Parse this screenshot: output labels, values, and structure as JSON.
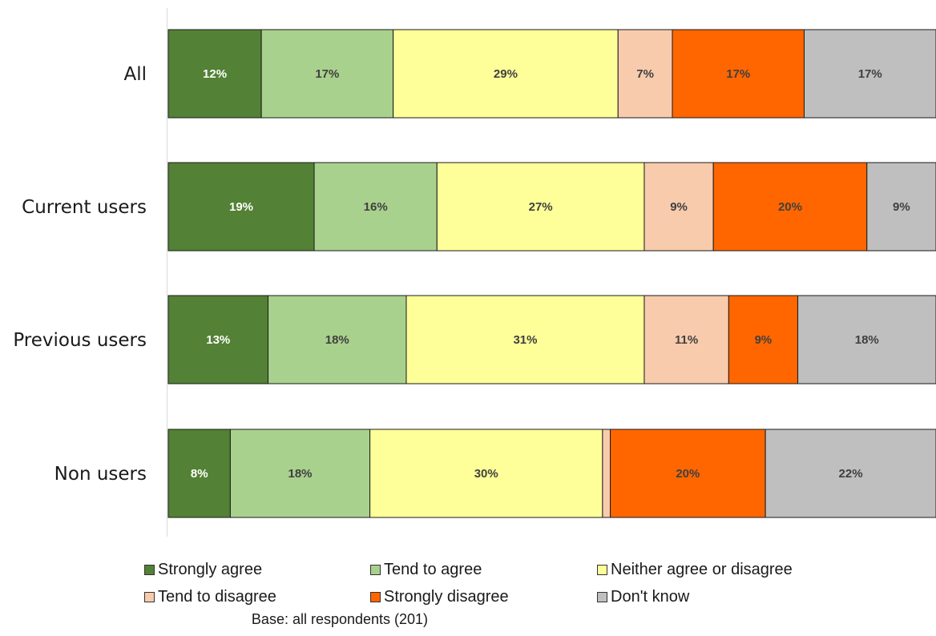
{
  "chart_data": {
    "type": "bar",
    "orientation": "horizontal",
    "stacked": true,
    "categories": [
      "All",
      "Current users",
      "Previous users",
      "Non users"
    ],
    "series": [
      {
        "name": "Strongly agree",
        "color": "#538135",
        "label_color": "#ffffff",
        "values": [
          12,
          19,
          13,
          8
        ],
        "labels": [
          "12%",
          "19%",
          "13%",
          "8%"
        ]
      },
      {
        "name": "Tend to agree",
        "color": "#a9d18e",
        "label_color": "#404040",
        "values": [
          17,
          16,
          18,
          18
        ],
        "labels": [
          "17%",
          "16%",
          "18%",
          "18%"
        ]
      },
      {
        "name": "Neither agree or disagree",
        "color": "#ffff99",
        "label_color": "#404040",
        "values": [
          29,
          27,
          31,
          30
        ],
        "labels": [
          "29%",
          "27%",
          "31%",
          "30%"
        ]
      },
      {
        "name": "Tend to disagree",
        "color": "#f8cbad",
        "label_color": "#404040",
        "values": [
          7,
          9,
          11,
          1
        ],
        "labels": [
          "7%",
          "9%",
          "11%",
          ""
        ]
      },
      {
        "name": "Strongly disagree",
        "color": "#ff6600",
        "label_color": "#404040",
        "values": [
          17,
          20,
          9,
          20
        ],
        "labels": [
          "17%",
          "20%",
          "9%",
          "20%"
        ]
      },
      {
        "name": "Don't know",
        "color": "#bfbfbf",
        "label_color": "#404040",
        "values": [
          17,
          9,
          18,
          22
        ],
        "labels": [
          "17%",
          "9%",
          "18%",
          "22%"
        ]
      }
    ],
    "xlim": [
      0,
      100
    ],
    "grid": false,
    "legend_position": "bottom",
    "note": "Base: all respondents (201)"
  }
}
